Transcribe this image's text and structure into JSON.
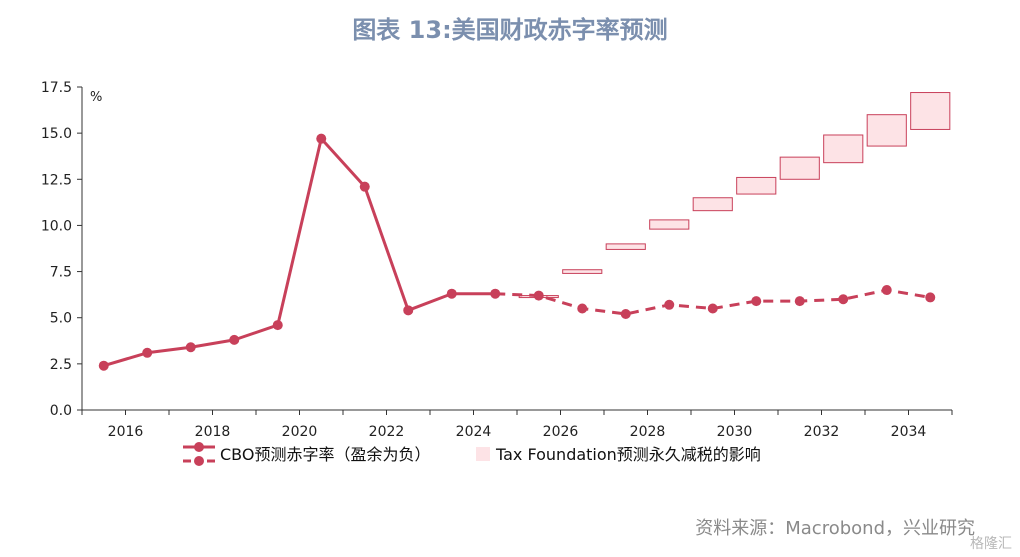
{
  "title": "图表 13:美国财政赤字率预测",
  "source": "资料来源：Macrobond，兴业研究",
  "watermark": "格隆汇",
  "chart_data": {
    "type": "line",
    "ylabel": "%",
    "ylim": [
      0,
      17.5
    ],
    "yticks": [
      "0.0",
      "2.5",
      "5.0",
      "7.5",
      "10.0",
      "12.5",
      "15.0",
      "17.5"
    ],
    "xlim": [
      2015,
      2035
    ],
    "xticks": [
      "2016",
      "2018",
      "2020",
      "2022",
      "2024",
      "2026",
      "2028",
      "2030",
      "2032",
      "2034"
    ],
    "colors": {
      "cbo": "#c8405a",
      "tax_fill": "#fde3e6",
      "tax_edge": "#c8405a"
    },
    "legend": [
      {
        "label": "CBO预测赤字率（盈余为负）"
      },
      {
        "label": "Tax Foundation预测永久减税的影响"
      }
    ],
    "series": [
      {
        "name": "CBO预测赤字率（盈余为负）",
        "style": "solid",
        "x": [
          2015.5,
          2016.5,
          2017.5,
          2018.5,
          2019.5,
          2020.5,
          2021.5,
          2022.5,
          2023.5,
          2024.5
        ],
        "y": [
          2.4,
          3.1,
          3.4,
          3.8,
          4.6,
          14.7,
          12.1,
          5.4,
          6.3,
          6.3
        ]
      },
      {
        "name": "CBO预测赤字率（盈余为负）",
        "style": "dashed",
        "x": [
          2024.5,
          2025.5,
          2026.5,
          2027.5,
          2028.5,
          2029.5,
          2030.5,
          2031.5,
          2032.5,
          2033.5,
          2034.5
        ],
        "y": [
          6.3,
          6.2,
          5.5,
          5.2,
          5.7,
          5.5,
          5.9,
          5.9,
          6.0,
          6.5,
          6.1
        ]
      }
    ],
    "bands": {
      "name": "Tax Foundation预测永久减税的影响",
      "x": [
        2025.5,
        2026.5,
        2027.5,
        2028.5,
        2029.5,
        2030.5,
        2031.5,
        2032.5,
        2033.5,
        2034.5
      ],
      "low": [
        6.1,
        7.4,
        8.7,
        9.8,
        10.8,
        11.7,
        12.5,
        13.4,
        14.3,
        15.2
      ],
      "high": [
        6.2,
        7.6,
        9.0,
        10.3,
        11.5,
        12.6,
        13.7,
        14.9,
        16.0,
        17.2
      ]
    }
  }
}
